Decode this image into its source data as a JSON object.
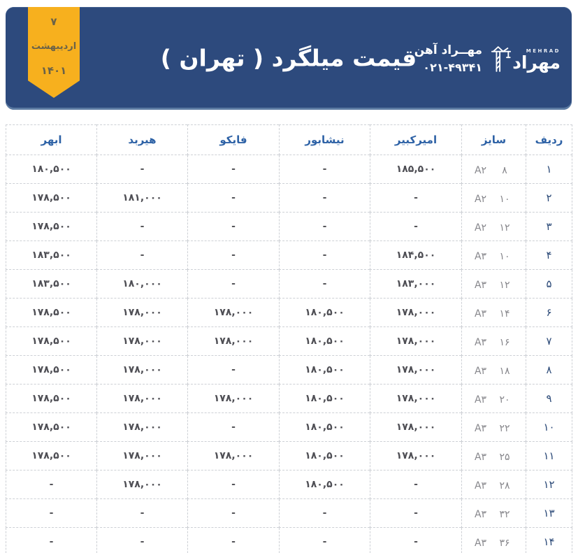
{
  "header": {
    "title": "قیمت میلگرد ( تهران )",
    "ribbon": {
      "day": "۷",
      "month": "اردیبهشت",
      "year": "۱۴۰۱"
    },
    "brand": {
      "name": "مهــراد آهن",
      "phone": "۰۲۱-۴۹۳۴۱",
      "logo_latin": "MEHRAD",
      "logo_fa": "مهراد"
    }
  },
  "colors": {
    "header_bg": "#2d4a7d",
    "header_text": "#ffffff",
    "ribbon": "#f7b01e",
    "ribbon_text": "#6a6248",
    "col_header": "#2e62a6",
    "row_number": "#2c4a78",
    "price_text": "#4f4f55",
    "size_text": "#87878c",
    "border": "#cdd0d5"
  },
  "table": {
    "columns": [
      {
        "key": "row",
        "label": "ردیف"
      },
      {
        "key": "size",
        "label": "سایز"
      },
      {
        "key": "amirkabir",
        "label": "امیرکبیر"
      },
      {
        "key": "neyshabur",
        "label": "نیشابور"
      },
      {
        "key": "fayco",
        "label": "فایکو"
      },
      {
        "key": "hirbod",
        "label": "هیربد"
      },
      {
        "key": "abhar",
        "label": "ابهر"
      }
    ],
    "rows": [
      {
        "row": "۱",
        "grade": "A۲",
        "size": "۸",
        "amirkabir": "۱۸۵,۵۰۰",
        "neyshabur": "-",
        "fayco": "-",
        "hirbod": "-",
        "abhar": "۱۸۰,۵۰۰"
      },
      {
        "row": "۲",
        "grade": "A۲",
        "size": "۱۰",
        "amirkabir": "-",
        "neyshabur": "-",
        "fayco": "-",
        "hirbod": "۱۸۱,۰۰۰",
        "abhar": "۱۷۸,۵۰۰"
      },
      {
        "row": "۳",
        "grade": "A۲",
        "size": "۱۲",
        "amirkabir": "-",
        "neyshabur": "-",
        "fayco": "-",
        "hirbod": "-",
        "abhar": "۱۷۸,۵۰۰"
      },
      {
        "row": "۴",
        "grade": "A۳",
        "size": "۱۰",
        "amirkabir": "۱۸۴,۵۰۰",
        "neyshabur": "-",
        "fayco": "-",
        "hirbod": "-",
        "abhar": "۱۸۳,۵۰۰"
      },
      {
        "row": "۵",
        "grade": "A۳",
        "size": "۱۲",
        "amirkabir": "۱۸۳,۰۰۰",
        "neyshabur": "-",
        "fayco": "-",
        "hirbod": "۱۸۰,۰۰۰",
        "abhar": "۱۸۳,۵۰۰"
      },
      {
        "row": "۶",
        "grade": "A۳",
        "size": "۱۴",
        "amirkabir": "۱۷۸,۰۰۰",
        "neyshabur": "۱۸۰,۵۰۰",
        "fayco": "۱۷۸,۰۰۰",
        "hirbod": "۱۷۸,۰۰۰",
        "abhar": "۱۷۸,۵۰۰"
      },
      {
        "row": "۷",
        "grade": "A۳",
        "size": "۱۶",
        "amirkabir": "۱۷۸,۰۰۰",
        "neyshabur": "۱۸۰,۵۰۰",
        "fayco": "۱۷۸,۰۰۰",
        "hirbod": "۱۷۸,۰۰۰",
        "abhar": "۱۷۸,۵۰۰"
      },
      {
        "row": "۸",
        "grade": "A۳",
        "size": "۱۸",
        "amirkabir": "۱۷۸,۰۰۰",
        "neyshabur": "۱۸۰,۵۰۰",
        "fayco": "-",
        "hirbod": "۱۷۸,۰۰۰",
        "abhar": "۱۷۸,۵۰۰"
      },
      {
        "row": "۹",
        "grade": "A۳",
        "size": "۲۰",
        "amirkabir": "۱۷۸,۰۰۰",
        "neyshabur": "۱۸۰,۵۰۰",
        "fayco": "۱۷۸,۰۰۰",
        "hirbod": "۱۷۸,۰۰۰",
        "abhar": "۱۷۸,۵۰۰"
      },
      {
        "row": "۱۰",
        "grade": "A۳",
        "size": "۲۲",
        "amirkabir": "۱۷۸,۰۰۰",
        "neyshabur": "۱۸۰,۵۰۰",
        "fayco": "-",
        "hirbod": "۱۷۸,۰۰۰",
        "abhar": "۱۷۸,۵۰۰"
      },
      {
        "row": "۱۱",
        "grade": "A۳",
        "size": "۲۵",
        "amirkabir": "۱۷۸,۰۰۰",
        "neyshabur": "۱۸۰,۵۰۰",
        "fayco": "۱۷۸,۰۰۰",
        "hirbod": "۱۷۸,۰۰۰",
        "abhar": "۱۷۸,۵۰۰"
      },
      {
        "row": "۱۲",
        "grade": "A۳",
        "size": "۲۸",
        "amirkabir": "-",
        "neyshabur": "۱۸۰,۵۰۰",
        "fayco": "-",
        "hirbod": "۱۷۸,۰۰۰",
        "abhar": "-"
      },
      {
        "row": "۱۳",
        "grade": "A۳",
        "size": "۳۲",
        "amirkabir": "-",
        "neyshabur": "-",
        "fayco": "-",
        "hirbod": "-",
        "abhar": "-"
      },
      {
        "row": "۱۴",
        "grade": "A۳",
        "size": "۳۶",
        "amirkabir": "-",
        "neyshabur": "-",
        "fayco": "-",
        "hirbod": "-",
        "abhar": "-"
      }
    ]
  }
}
